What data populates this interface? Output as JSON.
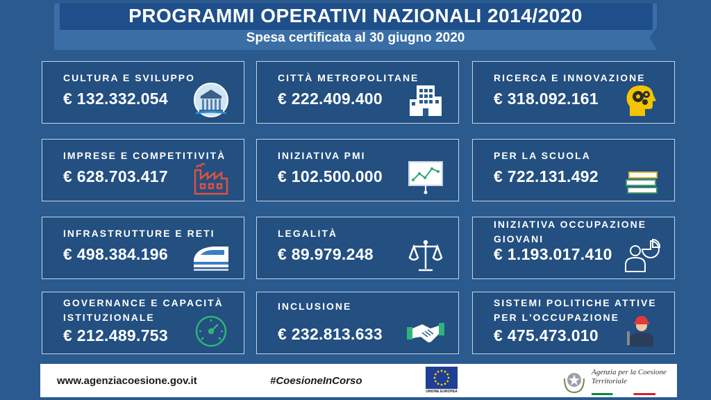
{
  "header": {
    "title": "PROGRAMMI OPERATIVI NAZIONALI 2014/2020",
    "subtitle": "Spesa certificata al 30 giugno 2020"
  },
  "programs": [
    {
      "label": "CULTURA E SVILUPPO",
      "value": "€ 132.332.054",
      "icon": "temple-icon"
    },
    {
      "label": "CITTÀ METROPOLITANE",
      "value": "€ 222.409.400",
      "icon": "building-icon"
    },
    {
      "label": "RICERCA E INNOVAZIONE",
      "value": "€ 318.092.161",
      "icon": "head-gears-icon"
    },
    {
      "label": "IMPRESE E COMPETITIVITÀ",
      "value": "€ 628.703.417",
      "icon": "factory-icon"
    },
    {
      "label": "INIZIATIVA PMI",
      "value": "€ 102.500.000",
      "icon": "chart-board-icon"
    },
    {
      "label": "PER LA SCUOLA",
      "value": "€ 722.131.492",
      "icon": "books-icon"
    },
    {
      "label": "INFRASTRUTTURE E RETI",
      "value": "€ 498.384.196",
      "icon": "train-icon"
    },
    {
      "label": "LEGALITÀ",
      "value": "€ 89.979.248",
      "icon": "scales-icon"
    },
    {
      "label": "INIZIATIVA OCCUPAZIONE GIOVANI",
      "value": "€ 1.193.017.410",
      "icon": "person-pie-icon"
    },
    {
      "label": "GOVERNANCE E CAPACITÀ ISTITUZIONALE",
      "value": "€ 212.489.753",
      "icon": "gauge-icon"
    },
    {
      "label": "INCLUSIONE",
      "value": "€ 232.813.633",
      "icon": "handshake-icon"
    },
    {
      "label": "SISTEMI POLITICHE ATTIVE PER L'OCCUPAZIONE",
      "value": "€ 475.473.010",
      "icon": "worker-icon"
    }
  ],
  "footer": {
    "website": "www.agenziacoesione.gov.it",
    "hashtag": "#CoesioneInCorso",
    "eu_label": "UNIONE EUROPEA",
    "agency_name": "Agenzia per la Coesione Territoriale"
  },
  "colors": {
    "background": "#2a5a8e",
    "card_border": "#c6d5e8",
    "eu_blue": "#1e3f94",
    "eu_star": "#ffd200"
  }
}
